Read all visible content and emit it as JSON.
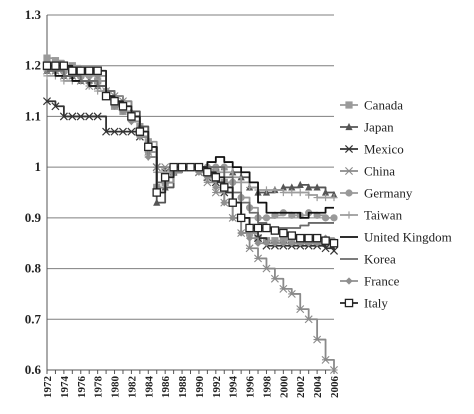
{
  "chart_data": {
    "type": "line",
    "title": "",
    "xlabel": "",
    "ylabel": "",
    "ylim": [
      0.6,
      1.3
    ],
    "yticks": [
      "0.6",
      "0.7",
      "0.8",
      "0.9",
      "1",
      "1.1",
      "1.2",
      "1.3"
    ],
    "xtick_labels": [
      "1972",
      "1974",
      "1976",
      "1978",
      "1980",
      "1982",
      "1984",
      "1986",
      "1988",
      "1990",
      "1992",
      "1994",
      "1996",
      "1998",
      "2000",
      "2002",
      "2004",
      "2006"
    ],
    "grid": "horizontal",
    "legend_position": "right",
    "x": [
      1972,
      1973,
      1974,
      1975,
      1976,
      1977,
      1978,
      1979,
      1980,
      1981,
      1982,
      1983,
      1984,
      1985,
      1986,
      1987,
      1988,
      1989,
      1990,
      1991,
      1992,
      1993,
      1994,
      1995,
      1996,
      1997,
      1998,
      1999,
      2000,
      2001,
      2002,
      2003,
      2004,
      2005,
      2006
    ],
    "series": [
      {
        "name": "Canada",
        "marker": "square",
        "color": "#9a9a9a",
        "values": [
          1.215,
          1.21,
          1.2,
          1.2,
          1.19,
          1.19,
          1.17,
          1.14,
          1.12,
          1.11,
          1.1,
          1.08,
          1.05,
          0.96,
          0.97,
          0.99,
          1.0,
          1.0,
          1.0,
          0.99,
          0.99,
          0.97,
          0.93,
          0.9,
          0.87,
          0.86,
          0.855,
          0.855,
          0.855,
          0.85,
          0.85,
          0.85,
          0.85,
          0.85,
          0.85
        ]
      },
      {
        "name": "Japan",
        "marker": "triangle",
        "color": "#555555",
        "values": [
          1.19,
          1.19,
          1.18,
          1.18,
          1.17,
          1.17,
          1.16,
          1.15,
          1.14,
          1.13,
          1.11,
          1.08,
          1.04,
          0.93,
          0.96,
          0.99,
          1.0,
          1.0,
          1.0,
          1.0,
          1.0,
          1.0,
          0.99,
          0.98,
          0.96,
          0.95,
          0.95,
          0.955,
          0.96,
          0.96,
          0.965,
          0.96,
          0.96,
          0.95,
          0.945
        ]
      },
      {
        "name": "Mexico",
        "marker": "x",
        "color": "#333333",
        "values": [
          1.13,
          1.12,
          1.1,
          1.1,
          1.1,
          1.1,
          1.1,
          1.07,
          1.07,
          1.07,
          1.07,
          1.06,
          1.04,
          1.0,
          0.99,
          1.0,
          1.0,
          1.0,
          0.99,
          0.98,
          0.97,
          0.95,
          0.93,
          0.9,
          0.88,
          0.86,
          0.845,
          0.845,
          0.845,
          0.845,
          0.845,
          0.845,
          0.845,
          0.84,
          0.835
        ]
      },
      {
        "name": "China",
        "marker": "star",
        "color": "#8a8a8a",
        "values": [
          1.19,
          1.19,
          1.18,
          1.18,
          1.17,
          1.16,
          1.16,
          1.15,
          1.14,
          1.13,
          1.1,
          1.07,
          1.03,
          1.0,
          1.0,
          1.0,
          1.0,
          1.0,
          0.99,
          0.97,
          0.95,
          0.93,
          0.9,
          0.87,
          0.84,
          0.82,
          0.8,
          0.78,
          0.76,
          0.75,
          0.72,
          0.7,
          0.66,
          0.62,
          0.6
        ]
      },
      {
        "name": "Germany",
        "marker": "circle",
        "color": "#999999",
        "values": [
          1.2,
          1.19,
          1.19,
          1.19,
          1.18,
          1.18,
          1.17,
          1.15,
          1.13,
          1.12,
          1.1,
          1.07,
          1.03,
          0.95,
          0.97,
          0.99,
          1.0,
          1.0,
          1.0,
          1.0,
          1.0,
          1.0,
          0.97,
          0.94,
          0.92,
          0.9,
          0.9,
          0.905,
          0.91,
          0.905,
          0.905,
          0.91,
          0.905,
          0.9,
          0.9
        ]
      },
      {
        "name": "Taiwan",
        "marker": "plus",
        "color": "#9c9c9c",
        "values": [
          1.18,
          1.18,
          1.17,
          1.17,
          1.17,
          1.16,
          1.15,
          1.14,
          1.12,
          1.11,
          1.09,
          1.06,
          1.02,
          0.99,
          0.99,
          1.0,
          1.0,
          1.0,
          1.0,
          1.0,
          1.0,
          0.99,
          0.98,
          0.97,
          0.96,
          0.955,
          0.955,
          0.955,
          0.95,
          0.95,
          0.95,
          0.945,
          0.94,
          0.94,
          0.94
        ]
      },
      {
        "name": "United Kingdom",
        "marker": "none",
        "color": "#111111",
        "values": [
          1.19,
          1.18,
          1.18,
          1.17,
          1.17,
          1.16,
          1.16,
          1.14,
          1.12,
          1.11,
          1.09,
          1.06,
          1.02,
          0.96,
          0.97,
          0.99,
          1.0,
          1.0,
          1.0,
          1.01,
          1.02,
          1.01,
          1.0,
          0.99,
          0.97,
          0.93,
          0.91,
          0.91,
          0.91,
          0.91,
          0.9,
          0.91,
          0.91,
          0.92,
          0.92
        ]
      },
      {
        "name": "Korea",
        "marker": "none",
        "color": "#6a6a6a",
        "values": [
          1.19,
          1.19,
          1.18,
          1.18,
          1.17,
          1.17,
          1.16,
          1.15,
          1.13,
          1.11,
          1.09,
          1.06,
          1.02,
          0.97,
          0.98,
          0.99,
          1.0,
          1.0,
          1.0,
          1.0,
          1.0,
          0.98,
          0.95,
          0.93,
          0.91,
          0.89,
          0.88,
          0.88,
          0.88,
          0.88,
          0.885,
          0.89,
          0.89,
          0.89,
          0.89
        ]
      },
      {
        "name": "France",
        "marker": "diamond",
        "color": "#8f8f8f",
        "values": [
          1.2,
          1.2,
          1.2,
          1.19,
          1.19,
          1.19,
          1.18,
          1.14,
          1.12,
          1.11,
          1.09,
          1.06,
          1.02,
          0.96,
          0.97,
          0.99,
          1.0,
          1.0,
          0.99,
          0.98,
          0.96,
          0.93,
          0.9,
          0.87,
          0.86,
          0.85,
          0.85,
          0.85,
          0.85,
          0.85,
          0.85,
          0.85,
          0.85,
          0.86,
          0.855
        ]
      },
      {
        "name": "Italy",
        "marker": "open-square",
        "color": "#222222",
        "values": [
          1.2,
          1.2,
          1.2,
          1.19,
          1.19,
          1.19,
          1.19,
          1.14,
          1.13,
          1.12,
          1.1,
          1.07,
          1.04,
          0.95,
          0.98,
          1.0,
          1.0,
          1.0,
          1.0,
          0.99,
          0.98,
          0.96,
          0.93,
          0.9,
          0.88,
          0.88,
          0.88,
          0.875,
          0.87,
          0.865,
          0.86,
          0.86,
          0.86,
          0.855,
          0.85
        ]
      }
    ]
  }
}
